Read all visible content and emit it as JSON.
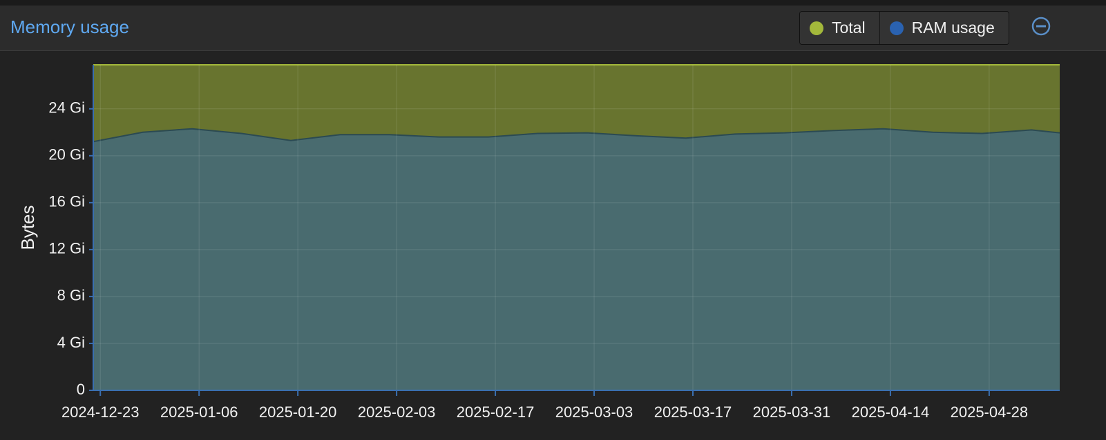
{
  "chart_data": {
    "type": "area",
    "title": "Memory usage",
    "y_label": "Bytes",
    "x": [
      "2024-12-22",
      "2024-12-29",
      "2025-01-05",
      "2025-01-12",
      "2025-01-19",
      "2025-01-26",
      "2025-02-02",
      "2025-02-09",
      "2025-02-16",
      "2025-02-23",
      "2025-03-02",
      "2025-03-09",
      "2025-03-16",
      "2025-03-23",
      "2025-03-30",
      "2025-04-06",
      "2025-04-13",
      "2025-04-20",
      "2025-04-27",
      "2025-05-04",
      "2025-05-08"
    ],
    "series": [
      {
        "name": "Total",
        "color": "#a3b83b",
        "values": [
          27.75,
          27.75,
          27.75,
          27.75,
          27.75,
          27.75,
          27.75,
          27.75,
          27.75,
          27.75,
          27.75,
          27.75,
          27.75,
          27.75,
          27.75,
          27.75,
          27.75,
          27.75,
          27.75,
          27.75,
          27.75
        ]
      },
      {
        "name": "RAM usage",
        "color": "#2a62b0",
        "values": [
          21.2,
          22.0,
          22.3,
          21.9,
          21.3,
          21.8,
          21.8,
          21.6,
          21.6,
          21.9,
          21.95,
          21.7,
          21.5,
          21.85,
          21.95,
          22.15,
          22.3,
          22.0,
          21.9,
          22.2,
          21.95
        ]
      }
    ],
    "xlim": [
      "2024-12-22",
      "2025-05-08"
    ],
    "xticks": [
      "2024-12-23",
      "2025-01-06",
      "2025-01-20",
      "2025-02-03",
      "2025-02-17",
      "2025-03-03",
      "2025-03-17",
      "2025-03-31",
      "2025-04-14",
      "2025-04-28"
    ],
    "ylim": [
      0,
      27.75
    ],
    "yticks": [
      0,
      {
        "value": 4,
        "label": "4 Gi"
      },
      {
        "value": 8,
        "label": "8 Gi"
      },
      {
        "value": 12,
        "label": "12 Gi"
      },
      {
        "value": 16,
        "label": "16 Gi"
      },
      {
        "value": 20,
        "label": "20 Gi"
      },
      {
        "value": 24,
        "label": "24 Gi"
      }
    ],
    "grid": true
  }
}
